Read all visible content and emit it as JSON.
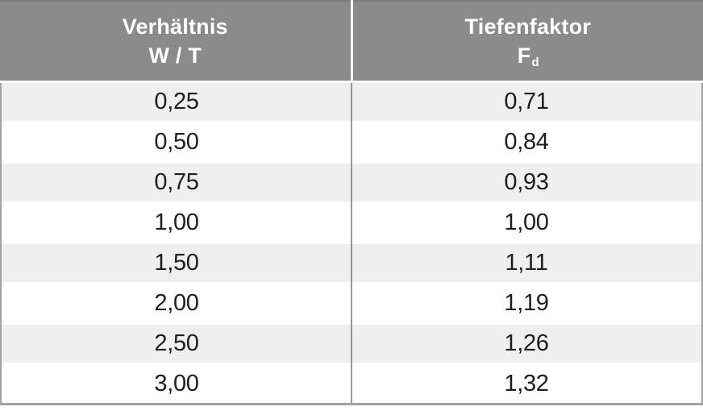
{
  "table": {
    "header_left": {
      "line1": "Verhältnis",
      "line2": "W / T"
    },
    "header_right": {
      "line1": "Tiefenfaktor",
      "symbol": "F",
      "symbol_sub": "d"
    },
    "rows": [
      {
        "ratio": "0,25",
        "factor": "0,71"
      },
      {
        "ratio": "0,50",
        "factor": "0,84"
      },
      {
        "ratio": "0,75",
        "factor": "0,93"
      },
      {
        "ratio": "1,00",
        "factor": "1,00"
      },
      {
        "ratio": "1,50",
        "factor": "1,11"
      },
      {
        "ratio": "2,00",
        "factor": "1,19"
      },
      {
        "ratio": "2,50",
        "factor": "1,26"
      },
      {
        "ratio": "3,00",
        "factor": "1,32"
      }
    ]
  },
  "colors": {
    "header_bg": "#8b8b8b",
    "header_top_line": "#7b7b7b",
    "header_text": "#ffffff",
    "row_stripe": "#efefef",
    "row_white": "#ffffff",
    "border_gray": "#a2a2a2",
    "divider_gray": "#969696",
    "body_text": "#1e1e1e"
  },
  "chart_data": {
    "type": "table",
    "columns": [
      "Verhältnis W / T",
      "Tiefenfaktor Fd"
    ],
    "rows": [
      [
        0.25,
        0.71
      ],
      [
        0.5,
        0.84
      ],
      [
        0.75,
        0.93
      ],
      [
        1.0,
        1.0
      ],
      [
        1.5,
        1.11
      ],
      [
        2.0,
        1.19
      ],
      [
        2.5,
        1.26
      ],
      [
        3.0,
        1.32
      ]
    ],
    "layout": {
      "header_position": "top",
      "zebra_striping": true,
      "decimal_separator": ","
    }
  }
}
